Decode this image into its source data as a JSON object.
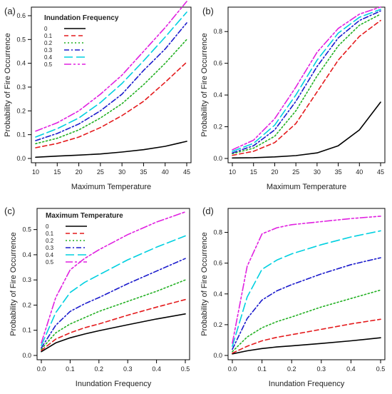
{
  "chart_data": [
    {
      "panel_label": "(a)",
      "type": "line",
      "xlabel": "Maximum Temperature",
      "ylabel": "Probability of Fire Occurrence",
      "xlim": [
        10,
        45
      ],
      "ylim": [
        0,
        0.6
      ],
      "xticks": [
        10,
        15,
        20,
        25,
        30,
        35,
        40,
        45
      ],
      "yticks": [
        0.0,
        0.1,
        0.2,
        0.3,
        0.4,
        0.5,
        0.6
      ],
      "legend_title": "Inundation Frequency",
      "legend_position": "top-left",
      "x": [
        10,
        15,
        20,
        25,
        30,
        35,
        40,
        45
      ],
      "series": [
        {
          "name": "0",
          "color": "#000000",
          "dash": "solid",
          "values": [
            0.005,
            0.01,
            0.014,
            0.019,
            0.027,
            0.037,
            0.051,
            0.072
          ]
        },
        {
          "name": "0.1",
          "color": "#e41a1c",
          "dash": "dashed",
          "values": [
            0.045,
            0.063,
            0.09,
            0.13,
            0.18,
            0.24,
            0.32,
            0.405
          ]
        },
        {
          "name": "0.2",
          "color": "#22b022",
          "dash": "dotted",
          "values": [
            0.062,
            0.085,
            0.12,
            0.17,
            0.23,
            0.31,
            0.4,
            0.5
          ]
        },
        {
          "name": "0.3",
          "color": "#1a1acc",
          "dash": "dashdot",
          "values": [
            0.075,
            0.105,
            0.145,
            0.2,
            0.27,
            0.37,
            0.46,
            0.57
          ]
        },
        {
          "name": "0.4",
          "color": "#00d0e0",
          "dash": "longdash",
          "values": [
            0.09,
            0.125,
            0.17,
            0.235,
            0.315,
            0.41,
            0.51,
            0.615
          ]
        },
        {
          "name": "0.5",
          "color": "#e020e0",
          "dash": "twodash",
          "values": [
            0.115,
            0.15,
            0.2,
            0.27,
            0.35,
            0.45,
            0.55,
            0.66
          ]
        }
      ]
    },
    {
      "panel_label": "(b)",
      "type": "line",
      "xlabel": "Maximum Temperature",
      "ylabel": "Probability of Fire Occurrence",
      "xlim": [
        10,
        45
      ],
      "ylim": [
        0,
        0.9
      ],
      "xticks": [
        10,
        15,
        20,
        25,
        30,
        35,
        40,
        45
      ],
      "yticks": [
        0.0,
        0.2,
        0.4,
        0.6,
        0.8
      ],
      "x": [
        10,
        15,
        20,
        25,
        30,
        35,
        40,
        45
      ],
      "series": [
        {
          "name": "0",
          "color": "#000000",
          "dash": "solid",
          "values": [
            0.003,
            0.005,
            0.01,
            0.018,
            0.035,
            0.08,
            0.18,
            0.355
          ]
        },
        {
          "name": "0.1",
          "color": "#e41a1c",
          "dash": "dashed",
          "values": [
            0.02,
            0.045,
            0.1,
            0.22,
            0.42,
            0.62,
            0.77,
            0.87
          ]
        },
        {
          "name": "0.2",
          "color": "#22b022",
          "dash": "dotted",
          "values": [
            0.03,
            0.065,
            0.14,
            0.3,
            0.52,
            0.71,
            0.84,
            0.91
          ]
        },
        {
          "name": "0.3",
          "color": "#1a1acc",
          "dash": "dashdot",
          "values": [
            0.035,
            0.08,
            0.18,
            0.36,
            0.58,
            0.76,
            0.87,
            0.93
          ]
        },
        {
          "name": "0.4",
          "color": "#00d0e0",
          "dash": "longdash",
          "values": [
            0.045,
            0.095,
            0.21,
            0.4,
            0.62,
            0.79,
            0.89,
            0.94
          ]
        },
        {
          "name": "0.5",
          "color": "#e020e0",
          "dash": "twodash",
          "values": [
            0.055,
            0.115,
            0.25,
            0.45,
            0.67,
            0.82,
            0.91,
            0.955
          ]
        }
      ]
    },
    {
      "panel_label": "(c)",
      "type": "line",
      "xlabel": "Inundation Frequency",
      "ylabel": "Probability of Fire Occurrence",
      "xlim": [
        0,
        0.5
      ],
      "ylim": [
        0,
        0.55
      ],
      "xticks": [
        0.0,
        0.1,
        0.2,
        0.3,
        0.4,
        0.5
      ],
      "yticks": [
        0.0,
        0.1,
        0.2,
        0.3,
        0.4,
        0.5
      ],
      "legend_title": "Maximum Temperature",
      "legend_position": "top-left",
      "x": [
        0,
        0.05,
        0.1,
        0.15,
        0.2,
        0.3,
        0.4,
        0.5
      ],
      "series": [
        {
          "name": "0",
          "color": "#000000",
          "dash": "solid",
          "values": [
            0.015,
            0.05,
            0.07,
            0.085,
            0.098,
            0.122,
            0.145,
            0.165
          ]
        },
        {
          "name": "0.1",
          "color": "#e41a1c",
          "dash": "dashed",
          "values": [
            0.02,
            0.065,
            0.09,
            0.11,
            0.125,
            0.16,
            0.192,
            0.222
          ]
        },
        {
          "name": "0.2",
          "color": "#22b022",
          "dash": "dotted",
          "values": [
            0.025,
            0.09,
            0.125,
            0.15,
            0.175,
            0.215,
            0.255,
            0.3
          ]
        },
        {
          "name": "0.3",
          "color": "#1a1acc",
          "dash": "dashdot",
          "values": [
            0.03,
            0.12,
            0.175,
            0.205,
            0.23,
            0.285,
            0.335,
            0.385
          ]
        },
        {
          "name": "0.4",
          "color": "#00d0e0",
          "dash": "longdash",
          "values": [
            0.04,
            0.17,
            0.25,
            0.29,
            0.32,
            0.38,
            0.43,
            0.475
          ]
        },
        {
          "name": "0.5",
          "color": "#e020e0",
          "dash": "twodash",
          "values": [
            0.05,
            0.23,
            0.34,
            0.385,
            0.42,
            0.48,
            0.53,
            0.57
          ]
        }
      ]
    },
    {
      "panel_label": "(d)",
      "type": "line",
      "xlabel": "Inundation Frequency",
      "ylabel": "Probability of Fire Occurrence",
      "xlim": [
        0,
        0.5
      ],
      "ylim": [
        0,
        0.9
      ],
      "xticks": [
        0.0,
        0.1,
        0.2,
        0.3,
        0.4,
        0.5
      ],
      "yticks": [
        0.0,
        0.2,
        0.4,
        0.6,
        0.8
      ],
      "x": [
        0,
        0.05,
        0.1,
        0.15,
        0.2,
        0.3,
        0.4,
        0.5
      ],
      "series": [
        {
          "name": "0",
          "color": "#000000",
          "dash": "solid",
          "values": [
            0.01,
            0.03,
            0.045,
            0.055,
            0.062,
            0.078,
            0.095,
            0.115
          ]
        },
        {
          "name": "0.1",
          "color": "#e41a1c",
          "dash": "dashed",
          "values": [
            0.015,
            0.06,
            0.095,
            0.118,
            0.135,
            0.17,
            0.205,
            0.235
          ]
        },
        {
          "name": "0.2",
          "color": "#22b022",
          "dash": "dotted",
          "values": [
            0.025,
            0.12,
            0.18,
            0.22,
            0.25,
            0.315,
            0.37,
            0.425
          ]
        },
        {
          "name": "0.3",
          "color": "#1a1acc",
          "dash": "dashdot",
          "values": [
            0.04,
            0.24,
            0.36,
            0.42,
            0.46,
            0.53,
            0.59,
            0.635
          ]
        },
        {
          "name": "0.4",
          "color": "#00d0e0",
          "dash": "longdash",
          "values": [
            0.06,
            0.38,
            0.56,
            0.62,
            0.66,
            0.72,
            0.77,
            0.81
          ]
        },
        {
          "name": "0.5",
          "color": "#e020e0",
          "dash": "twodash",
          "values": [
            0.08,
            0.58,
            0.79,
            0.83,
            0.85,
            0.87,
            0.89,
            0.905
          ]
        }
      ]
    }
  ]
}
